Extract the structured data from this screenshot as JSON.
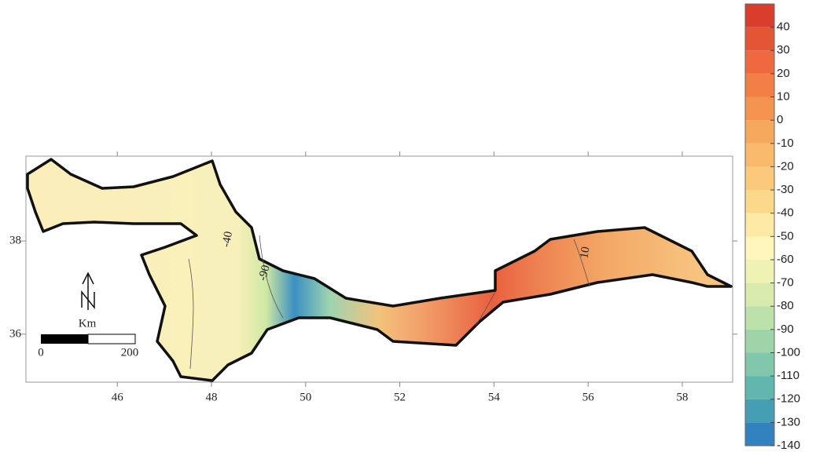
{
  "map": {
    "xlim": [
      44.06,
      59.07
    ],
    "ylim": [
      34.97,
      39.82
    ],
    "xticks": [
      46,
      48,
      50,
      52,
      54,
      56,
      58
    ],
    "yticks": [
      36,
      38
    ],
    "contour_labels": [
      "-40",
      "-90",
      "10"
    ],
    "scale_bar": {
      "unit": "Km",
      "labels": [
        "0",
        "200"
      ]
    },
    "north": "N"
  },
  "colorbar": {
    "lim": [
      -140,
      50
    ],
    "ticks": [
      -140,
      -130,
      -120,
      -110,
      -100,
      -90,
      -80,
      -70,
      -60,
      -50,
      -40,
      -30,
      -20,
      -10,
      0,
      10,
      20,
      30,
      40
    ],
    "colors": [
      "#3182be",
      "#449eb4",
      "#5fb7ad",
      "#80c7ab",
      "#9fd4a9",
      "#bde1aa",
      "#d8ebac",
      "#eef3b3",
      "#fef6bb",
      "#fde8a4",
      "#fcd88b",
      "#fac97a",
      "#f8b96a",
      "#f6a85c",
      "#f4934f",
      "#f17f46",
      "#ee6a3e",
      "#e45535",
      "#d93e2c"
    ]
  }
}
